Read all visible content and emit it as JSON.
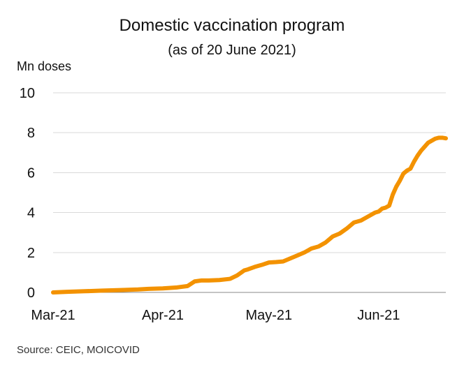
{
  "chart_data": {
    "type": "line",
    "title": "Domestic vaccination program",
    "subtitle": "(as of 20 June 2021)",
    "xlabel": "",
    "ylabel": "Mn doses",
    "source": "Source: CEIC, MOICOVID",
    "x_tick_labels": [
      "Mar-21",
      "Apr-21",
      "May-21",
      "Jun-21"
    ],
    "x_tick_dates": [
      "2021-03-01",
      "2021-04-01",
      "2021-05-01",
      "2021-06-01"
    ],
    "y_ticks": [
      0,
      2,
      4,
      6,
      8,
      10
    ],
    "ylim": [
      0,
      10
    ],
    "xlim": [
      "2021-03-01",
      "2021-06-20"
    ],
    "grid": true,
    "legend": "none",
    "line_color": "#F39200",
    "series": [
      {
        "x": [
          "2021-03-01",
          "2021-03-05",
          "2021-03-10",
          "2021-03-15",
          "2021-03-20",
          "2021-03-25",
          "2021-03-28",
          "2021-04-01",
          "2021-04-05",
          "2021-04-08",
          "2021-04-10",
          "2021-04-12",
          "2021-04-14",
          "2021-04-17",
          "2021-04-20",
          "2021-04-22",
          "2021-04-24",
          "2021-04-25",
          "2021-04-27",
          "2021-04-29",
          "2021-05-01",
          "2021-05-03",
          "2021-05-05",
          "2021-05-07",
          "2021-05-09",
          "2021-05-11",
          "2021-05-13",
          "2021-05-15",
          "2021-05-17",
          "2021-05-19",
          "2021-05-21",
          "2021-05-23",
          "2021-05-25",
          "2021-05-27",
          "2021-05-29",
          "2021-05-31",
          "2021-06-01",
          "2021-06-02",
          "2021-06-03",
          "2021-06-04",
          "2021-06-05",
          "2021-06-06",
          "2021-06-07",
          "2021-06-08",
          "2021-06-09",
          "2021-06-10",
          "2021-06-11",
          "2021-06-12",
          "2021-06-13",
          "2021-06-14",
          "2021-06-15",
          "2021-06-16",
          "2021-06-17",
          "2021-06-18",
          "2021-06-19",
          "2021-06-20"
        ],
        "values": [
          0.0,
          0.03,
          0.06,
          0.09,
          0.12,
          0.15,
          0.18,
          0.2,
          0.25,
          0.32,
          0.55,
          0.6,
          0.6,
          0.62,
          0.68,
          0.85,
          1.1,
          1.15,
          1.28,
          1.38,
          1.5,
          1.52,
          1.55,
          1.7,
          1.85,
          2.0,
          2.2,
          2.3,
          2.5,
          2.8,
          2.95,
          3.2,
          3.5,
          3.6,
          3.8,
          4.0,
          4.05,
          4.2,
          4.25,
          4.35,
          4.9,
          5.3,
          5.6,
          5.95,
          6.1,
          6.2,
          6.55,
          6.85,
          7.1,
          7.3,
          7.5,
          7.6,
          7.7,
          7.75,
          7.75,
          7.72
        ]
      }
    ]
  }
}
